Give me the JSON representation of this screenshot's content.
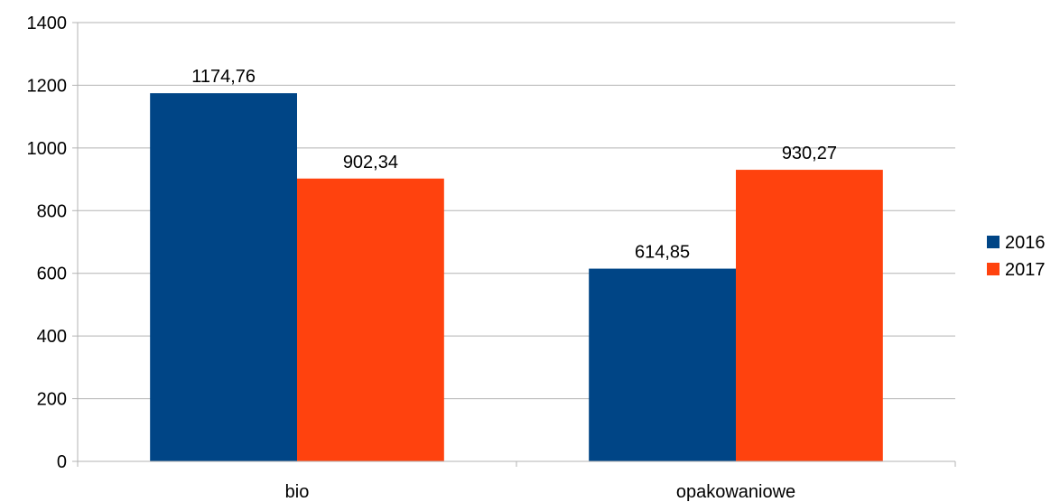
{
  "chart_data": {
    "type": "bar",
    "categories": [
      "bio",
      "opakowaniowe"
    ],
    "series": [
      {
        "name": "2016",
        "values": [
          1174.76,
          614.85
        ],
        "labels": [
          "1174,76",
          "614,85"
        ],
        "color": "#004586"
      },
      {
        "name": "2017",
        "values": [
          902.34,
          930.27
        ],
        "labels": [
          "902,34",
          "930,27"
        ],
        "color": "#ff420e"
      }
    ],
    "ylim": [
      0,
      1400
    ],
    "yticks": [
      0,
      200,
      400,
      600,
      800,
      1000,
      1200,
      1400
    ],
    "ytick_labels": [
      "0",
      "200",
      "400",
      "600",
      "800",
      "1000",
      "1200",
      "1400"
    ],
    "grid": true,
    "legend": "right"
  }
}
